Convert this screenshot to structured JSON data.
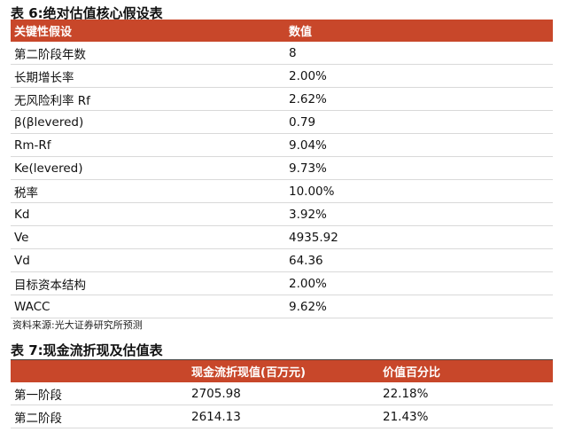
{
  "table6": {
    "title": "表 6:绝对估值核心假设表",
    "headers": [
      "关键性假设",
      "数值"
    ],
    "rows": [
      [
        "第二阶段年数",
        "8"
      ],
      [
        "长期增长率",
        "2.00%"
      ],
      [
        "无风险利率 Rf",
        "2.62%"
      ],
      [
        "β(βlevered)",
        "0.79"
      ],
      [
        "Rm-Rf",
        "9.04%"
      ],
      [
        "Ke(levered)",
        "9.73%"
      ],
      [
        "税率",
        "10.00%"
      ],
      [
        "Kd",
        "3.92%"
      ],
      [
        "Ve",
        "4935.92"
      ],
      [
        "Vd",
        "64.36"
      ],
      [
        "目标资本结构",
        "2.00%"
      ],
      [
        "WACC",
        "9.62%"
      ]
    ],
    "source": "资料来源:光大证券研究所预测"
  },
  "table7": {
    "title": "表 7:现金流折现及估值表",
    "headers": [
      "",
      "现金流折现值(百万元)",
      "价值百分比"
    ],
    "rows": [
      [
        "第一阶段",
        "2705.98",
        "22.18%"
      ],
      [
        "第二阶段",
        "2614.13",
        "21.43%"
      ]
    ]
  },
  "colors": {
    "header_bg": "#c8472a",
    "header_text": "#ffffff"
  }
}
